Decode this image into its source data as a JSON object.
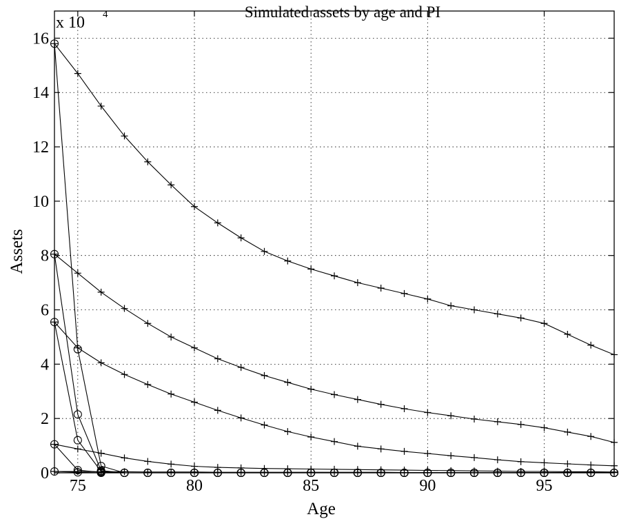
{
  "chart_data": {
    "type": "line",
    "title": "Simulated assets by age and PI",
    "xlabel": "Age",
    "ylabel": "Assets",
    "y_multiplier": "x 10",
    "y_exponent": "4",
    "xlim": [
      74,
      98
    ],
    "ylim": [
      0,
      17
    ],
    "x_ticks": [
      75,
      80,
      85,
      90,
      95
    ],
    "y_ticks": [
      0,
      2,
      4,
      6,
      8,
      10,
      12,
      14,
      16
    ],
    "y_unit_scale": 10000,
    "grid": true,
    "marker_plus_series": [
      {
        "x": [
          74,
          75,
          76,
          77,
          78,
          79,
          80,
          81,
          82,
          83,
          84,
          85,
          86,
          87,
          88,
          89,
          90,
          91,
          92,
          93,
          94,
          95,
          96,
          97,
          98
        ],
        "values": [
          15.8,
          14.7,
          13.5,
          12.4,
          11.45,
          10.6,
          9.8,
          9.2,
          8.65,
          8.15,
          7.8,
          7.5,
          7.25,
          7.0,
          6.8,
          6.6,
          6.4,
          6.15,
          6.0,
          5.85,
          5.7,
          5.5,
          5.1,
          4.7,
          4.35
        ]
      },
      {
        "x": [
          74,
          75,
          76,
          77,
          78,
          79,
          80,
          81,
          82,
          83,
          84,
          85,
          86,
          87,
          88,
          89,
          90,
          91,
          92,
          93,
          94,
          95,
          96,
          97,
          98
        ],
        "values": [
          8.05,
          7.35,
          6.65,
          6.05,
          5.5,
          5.0,
          4.6,
          4.2,
          3.88,
          3.58,
          3.33,
          3.08,
          2.88,
          2.7,
          2.52,
          2.36,
          2.22,
          2.1,
          1.98,
          1.88,
          1.78,
          1.66,
          1.5,
          1.34,
          1.12
        ]
      },
      {
        "x": [
          74,
          75,
          76,
          77,
          78,
          79,
          80,
          81,
          82,
          83,
          84,
          85,
          86,
          87,
          88,
          89,
          90,
          91,
          92,
          93,
          94,
          95,
          96,
          97,
          98
        ],
        "values": [
          5.55,
          4.6,
          4.05,
          3.62,
          3.25,
          2.9,
          2.6,
          2.3,
          2.02,
          1.76,
          1.52,
          1.32,
          1.15,
          0.98,
          0.88,
          0.79,
          0.71,
          0.63,
          0.56,
          0.48,
          0.41,
          0.37,
          0.33,
          0.29,
          0.26
        ]
      },
      {
        "x": [
          74,
          75,
          76,
          77,
          78,
          79,
          80,
          81,
          82,
          83,
          84,
          85,
          86,
          87,
          88,
          89,
          90,
          91,
          92,
          93,
          94,
          95,
          96,
          97,
          98
        ],
        "values": [
          1.05,
          0.88,
          0.72,
          0.55,
          0.42,
          0.32,
          0.24,
          0.2,
          0.18,
          0.16,
          0.15,
          0.14,
          0.13,
          0.12,
          0.11,
          0.1,
          0.09,
          0.08,
          0.07,
          0.06,
          0.05,
          0.05,
          0.04,
          0.04,
          0.03
        ]
      },
      {
        "x": [
          74,
          75,
          76,
          77,
          78,
          79,
          80,
          81,
          82,
          83,
          84,
          85,
          86,
          87,
          88,
          89,
          90,
          91,
          92,
          93,
          94,
          95,
          96,
          97,
          98
        ],
        "values": [
          0.05,
          0.05,
          0.04,
          0.04,
          0.03,
          0.03,
          0.03,
          0.02,
          0.02,
          0.02,
          0.02,
          0.02,
          0.02,
          0.02,
          0.02,
          0.01,
          0.01,
          0.01,
          0.01,
          0.01,
          0.01,
          0.01,
          0.01,
          0.01,
          0.01
        ]
      }
    ],
    "marker_circle_series": [
      {
        "x": [
          74,
          75,
          76,
          77,
          78,
          79,
          80,
          81,
          82,
          83,
          84,
          85,
          86,
          87,
          88,
          89,
          90,
          91,
          92,
          93,
          94,
          95,
          96,
          97,
          98
        ],
        "values": [
          15.8,
          4.55,
          0.25,
          0,
          0,
          0,
          0,
          0,
          0,
          0,
          0,
          0,
          0,
          0,
          0,
          0,
          0,
          0,
          0,
          0,
          0,
          0,
          0,
          0,
          0
        ]
      },
      {
        "x": [
          74,
          75,
          76,
          77,
          78,
          79,
          80,
          81,
          82,
          83,
          84,
          85,
          86,
          87,
          88,
          89,
          90,
          91,
          92,
          93,
          94,
          95,
          96,
          97,
          98
        ],
        "values": [
          8.05,
          2.15,
          0.08,
          0,
          0,
          0,
          0,
          0,
          0,
          0,
          0,
          0,
          0,
          0,
          0,
          0,
          0,
          0,
          0,
          0,
          0,
          0,
          0,
          0,
          0
        ]
      },
      {
        "x": [
          74,
          75,
          76,
          77,
          78,
          79,
          80,
          81,
          82,
          83,
          84,
          85,
          86,
          87,
          88,
          89,
          90,
          91,
          92,
          93,
          94,
          95,
          96,
          97,
          98
        ],
        "values": [
          5.55,
          1.2,
          0.05,
          0,
          0,
          0,
          0,
          0,
          0,
          0,
          0,
          0,
          0,
          0,
          0,
          0,
          0,
          0,
          0,
          0,
          0,
          0,
          0,
          0,
          0
        ]
      },
      {
        "x": [
          74,
          75,
          76,
          77,
          78,
          79,
          80,
          81,
          82,
          83,
          84,
          85,
          86,
          87,
          88,
          89,
          90,
          91,
          92,
          93,
          94,
          95,
          96,
          97,
          98
        ],
        "values": [
          1.05,
          0.1,
          0.02,
          0,
          0,
          0,
          0,
          0,
          0,
          0,
          0,
          0,
          0,
          0,
          0,
          0,
          0,
          0,
          0,
          0,
          0,
          0,
          0,
          0,
          0
        ]
      },
      {
        "x": [
          74,
          75,
          76,
          77,
          78,
          79,
          80,
          81,
          82,
          83,
          84,
          85,
          86,
          87,
          88,
          89,
          90,
          91,
          92,
          93,
          94,
          95,
          96,
          97,
          98
        ],
        "values": [
          0.05,
          0.02,
          0,
          0,
          0,
          0,
          0,
          0,
          0,
          0,
          0,
          0,
          0,
          0,
          0,
          0,
          0,
          0,
          0,
          0,
          0,
          0,
          0,
          0,
          0
        ]
      }
    ]
  }
}
